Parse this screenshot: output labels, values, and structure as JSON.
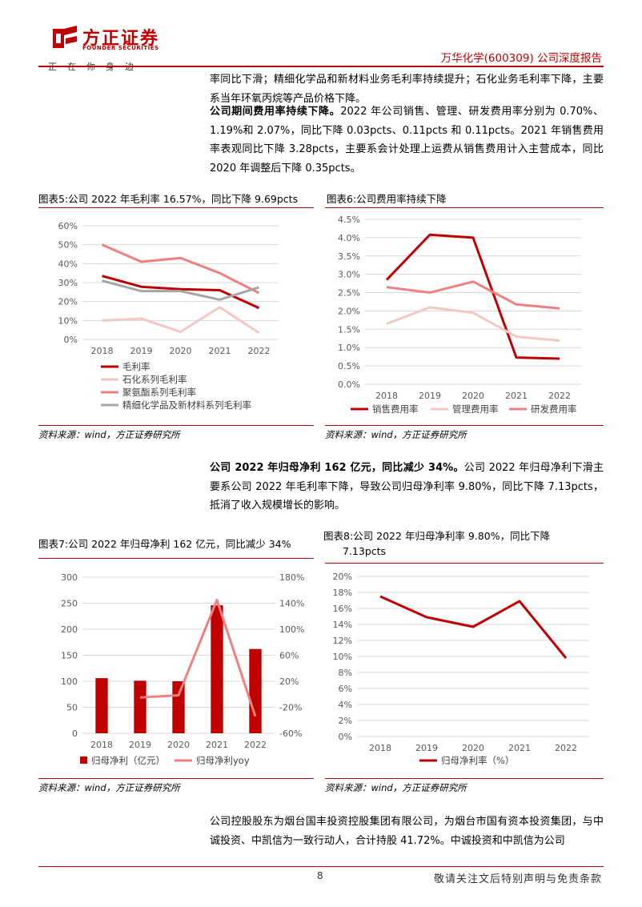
{
  "header": {
    "logo_cn": "方正证券",
    "logo_en": "FOUNDER SECURITIES",
    "slogan": "正在你身边",
    "report_title": "万华化学(600309) 公司深度报告"
  },
  "body": {
    "para1": "率同比下滑；精细化学品和新材料业务毛利率持续提升；石化业务毛利率下降，主要系当年环氧丙烷等产品价格下降。",
    "para2_bold": "公司期间费用率持续下降。",
    "para2_rest": "2022 年公司销售、管理、研发费用率分别为 0.70%、1.19%和 2.07%，同比下降 0.03pcts、0.11pcts 和 0.11pcts。2021 年销售费用率表观同比下降 3.28pcts，主要系会计处理上运费从销售费用计入主营成本，同比 2020 年调整后下降 0.35pcts。",
    "para3_bold": "公司 2022 年归母净利 162 亿元，同比减少 34%。",
    "para3_rest": "公司 2022 年归母净利下滑主要系公司 2022 年毛利率下降，导致公司归母净利率 9.80%，同比下降 7.13pcts，抵消了收入规模增长的影响。",
    "para4": "公司控股股东为烟台国丰投资控股集团有限公司，为烟台市国有资本投资集团，与中诚投资、中凯信为一致行动人，合计持股 41.72%。中诚投资和中凯信为公司"
  },
  "figures": {
    "fig5_title": "图表5:公司 2022 年毛利率 16.57%，同比下降 9.69pcts",
    "fig6_title": "图表6:公司费用率持续下降",
    "fig7_title": "图表7:公司 2022 年归母净利 162 亿元，同比减少 34%",
    "fig8_title_l1": "图表8:公司 2022 年归母净利率 9.80%，同比下降",
    "fig8_title_l2": "7.13pcts",
    "source": "资料来源：wind，方正证券研究所"
  },
  "footer": {
    "page": "8",
    "disclaimer": "敬请关注文后特别声明与免责条款"
  },
  "colors": {
    "brand_red": "#c00000",
    "dark_red": "#c00000",
    "light_pink": "#f4c7c3",
    "salmon": "#f08080",
    "gray": "#a6a6a6"
  },
  "chart_data": [
    {
      "id": "fig5",
      "type": "line",
      "categories": [
        "2018",
        "2019",
        "2020",
        "2021",
        "2022"
      ],
      "ylim": [
        0,
        60
      ],
      "yticks": [
        "0%",
        "10%",
        "20%",
        "30%",
        "40%",
        "50%",
        "60%"
      ],
      "series": [
        {
          "name": "毛利率",
          "color": "#c00000",
          "values": [
            33.5,
            27.8,
            26.5,
            26.0,
            16.6
          ]
        },
        {
          "name": "石化系列毛利率",
          "color": "#f4c7c3",
          "values": [
            10.0,
            11.0,
            4.0,
            17.0,
            3.5
          ]
        },
        {
          "name": "聚氨酯系列毛利率",
          "color": "#f08080",
          "values": [
            50.0,
            41.0,
            43.0,
            35.0,
            24.5
          ]
        },
        {
          "name": "精细化学品及新材料系列毛利率",
          "color": "#a6a6a6",
          "values": [
            31.0,
            25.5,
            25.5,
            21.0,
            27.5
          ]
        }
      ]
    },
    {
      "id": "fig6",
      "type": "line",
      "categories": [
        "2018",
        "2019",
        "2020",
        "2021",
        "2022"
      ],
      "ylim": [
        0,
        4.5
      ],
      "yticks": [
        "0.0%",
        "0.5%",
        "1.0%",
        "1.5%",
        "2.0%",
        "2.5%",
        "3.0%",
        "3.5%",
        "4.0%",
        "4.5%"
      ],
      "series": [
        {
          "name": "销售费用率",
          "color": "#c00000",
          "values": [
            2.85,
            4.08,
            4.0,
            0.73,
            0.7
          ]
        },
        {
          "name": "管理费用率",
          "color": "#f4c7c3",
          "values": [
            1.65,
            2.1,
            1.95,
            1.3,
            1.19
          ]
        },
        {
          "name": "研发费用率",
          "color": "#f08080",
          "values": [
            2.65,
            2.5,
            2.8,
            2.18,
            2.07
          ]
        }
      ]
    },
    {
      "id": "fig7",
      "type": "bar",
      "categories": [
        "2018",
        "2019",
        "2020",
        "2021",
        "2022"
      ],
      "ylim": [
        0,
        300
      ],
      "yticks": [
        "0",
        "50",
        "100",
        "150",
        "200",
        "250",
        "300"
      ],
      "y2lim": [
        -60,
        180
      ],
      "y2ticks": [
        "-60%",
        "-20%",
        "20%",
        "60%",
        "100%",
        "140%",
        "180%"
      ],
      "series": [
        {
          "name": "归母净利（亿元）",
          "color": "#c00000",
          "type": "bar",
          "values": [
            106,
            101,
            100,
            246,
            162
          ]
        },
        {
          "name": "归母净利yoy",
          "color": "#f08080",
          "type": "line",
          "values": [
            null,
            -5,
            -1.5,
            145,
            -34
          ]
        }
      ]
    },
    {
      "id": "fig8",
      "type": "line",
      "categories": [
        "2018",
        "2019",
        "2020",
        "2021",
        "2022"
      ],
      "ylim": [
        0,
        20
      ],
      "yticks": [
        "0%",
        "2%",
        "4%",
        "6%",
        "8%",
        "10%",
        "12%",
        "14%",
        "16%",
        "18%",
        "20%"
      ],
      "series": [
        {
          "name": "归母净利率（%）",
          "color": "#c00000",
          "values": [
            17.5,
            14.9,
            13.7,
            16.9,
            9.8
          ]
        }
      ]
    }
  ]
}
